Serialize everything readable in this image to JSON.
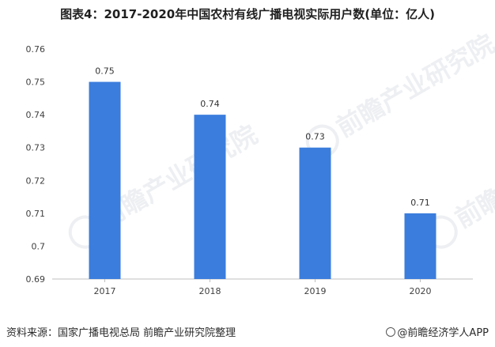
{
  "title": "图表4：2017-2020年中国农村有线广播电视实际用户数(单位：亿人)",
  "source": "资料来源：国家广播电视总局 前瞻产业研究院整理",
  "brand": "@前瞻经济学人APP",
  "watermark": "前瞻产业研究院",
  "colors": {
    "bar": "#3b7ddd",
    "axis": "#bfbfbf",
    "text": "#404040"
  },
  "chart_data": {
    "type": "bar",
    "categories": [
      "2017",
      "2018",
      "2019",
      "2020"
    ],
    "values": [
      0.75,
      0.74,
      0.73,
      0.71
    ],
    "data_labels": [
      "0.75",
      "0.74",
      "0.73",
      "0.71"
    ],
    "title": "图表4：2017-2020年中国农村有线广播电视实际用户数(单位：亿人)",
    "xlabel": "",
    "ylabel": "",
    "ylim": [
      0.69,
      0.76
    ],
    "yticks": [
      "0.69",
      "0.7",
      "0.71",
      "0.72",
      "0.73",
      "0.74",
      "0.75",
      "0.76"
    ],
    "grid": false,
    "legend": "none"
  }
}
